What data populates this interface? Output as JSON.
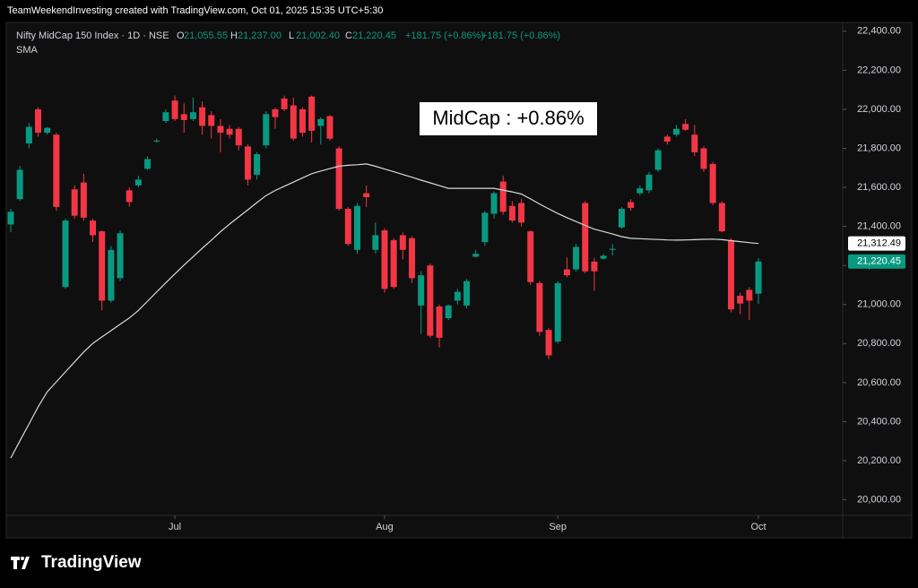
{
  "header": {
    "credit": "TeamWeekendInvesting created with TradingView.com, Oct 01, 2025 15:35 UTC+5:30",
    "symbol": "Nifty MidCap 150 Index · 1D · NSE",
    "ohlc": [
      {
        "key": "O",
        "value": "21,055.55"
      },
      {
        "key": "H",
        "value": "21,237.00"
      },
      {
        "key": "L",
        "value": "21,002.40"
      },
      {
        "key": "C",
        "value": "21,220.45"
      }
    ],
    "change": "+181.75 (+0.86%)",
    "change2": "+181.75 (+0.86%)",
    "indicator": "SMA"
  },
  "annotation": "MidCap : +0.86%",
  "logo": "TradingView",
  "chart_data": {
    "type": "candlestick",
    "categories": [
      null,
      null,
      null,
      null,
      null,
      null,
      null,
      null,
      null,
      null,
      null,
      null,
      null,
      null,
      null,
      null,
      null,
      null,
      "Jul",
      null,
      null,
      null,
      null,
      null,
      null,
      null,
      null,
      null,
      null,
      null,
      null,
      null,
      null,
      null,
      null,
      null,
      null,
      null,
      null,
      null,
      null,
      "Aug",
      null,
      null,
      null,
      null,
      null,
      null,
      null,
      null,
      null,
      null,
      null,
      null,
      null,
      null,
      null,
      null,
      null,
      null,
      "Sep",
      null,
      null,
      null,
      null,
      null,
      null,
      null,
      null,
      null,
      null,
      null,
      null,
      null,
      null,
      null,
      null,
      null,
      null,
      null,
      null,
      null,
      "Oct"
    ],
    "open": [
      21410,
      21540,
      21825,
      22000,
      21880,
      21870,
      21090,
      21590,
      21625,
      21430,
      21375,
      21020,
      21135,
      21585,
      21610,
      21695,
      21835,
      21940,
      22045,
      21975,
      21950,
      22010,
      21970,
      21915,
      21900,
      21900,
      21810,
      21665,
      21815,
      22000,
      22055,
      22020,
      22000,
      22065,
      21915,
      21965,
      21800,
      21490,
      21280,
      21570,
      21280,
      21380,
      21330,
      21355,
      21340,
      20995,
      21200,
      20990,
      20930,
      21020,
      20995,
      21245,
      21320,
      21465,
      21630,
      21505,
      21520,
      21375,
      21110,
      20870,
      20810,
      21180,
      21180,
      21520,
      21220,
      21235,
      21280,
      21395,
      21525,
      21570,
      21585,
      21690,
      21860,
      21870,
      21925,
      21870,
      21800,
      21720,
      21520,
      21330,
      21045,
      21075,
      21055.55
    ],
    "high": [
      21490,
      21710,
      21930,
      22010,
      21910,
      21880,
      21440,
      21610,
      21670,
      21440,
      21380,
      21300,
      21380,
      21600,
      21660,
      21760,
      21850,
      22000,
      22070,
      22030,
      22060,
      22040,
      21990,
      21950,
      21920,
      21910,
      21820,
      21780,
      21990,
      22010,
      22070,
      22060,
      22010,
      22070,
      21960,
      21970,
      21810,
      21500,
      21520,
      21610,
      21420,
      21390,
      21340,
      21370,
      21350,
      21170,
      21210,
      21000,
      21000,
      21080,
      21130,
      21280,
      21480,
      21580,
      21660,
      21530,
      21540,
      21380,
      21120,
      20880,
      21120,
      21240,
      21310,
      21530,
      21240,
      21260,
      21310,
      21500,
      21540,
      21610,
      21680,
      21800,
      21870,
      21920,
      21950,
      21920,
      21810,
      21730,
      21530,
      21340,
      21060,
      21090,
      21237
    ],
    "low": [
      21370,
      21530,
      21800,
      21860,
      21870,
      21480,
      21080,
      21440,
      21430,
      21320,
      20970,
      21010,
      21120,
      21500,
      21600,
      21690,
      21830,
      21930,
      21940,
      21880,
      21940,
      21870,
      21850,
      21780,
      21850,
      21790,
      21610,
      21640,
      21800,
      21900,
      21990,
      21840,
      21860,
      21830,
      21820,
      21840,
      21480,
      21300,
      21260,
      21500,
      21260,
      21060,
      21080,
      21230,
      21110,
      20850,
      20830,
      20780,
      20920,
      21000,
      20980,
      21240,
      21300,
      21440,
      21460,
      21420,
      21400,
      21100,
      20840,
      20720,
      20800,
      21140,
      21170,
      21160,
      21070,
      21230,
      21250,
      21390,
      21480,
      21560,
      21570,
      21680,
      21820,
      21860,
      21890,
      21760,
      21680,
      21510,
      21370,
      20960,
      20950,
      20920,
      21002.4
    ],
    "close": [
      21475,
      21690,
      21910,
      21880,
      21905,
      21500,
      21430,
      21455,
      21445,
      21355,
      21020,
      21280,
      21365,
      21525,
      21640,
      21745,
      21840,
      21985,
      21950,
      21945,
      21985,
      21915,
      21915,
      21880,
      21870,
      21815,
      21640,
      21770,
      21975,
      21960,
      22000,
      21850,
      21880,
      21890,
      21950,
      21850,
      21490,
      21310,
      21505,
      21550,
      21355,
      21080,
      21090,
      21280,
      21135,
      21150,
      20840,
      20830,
      20995,
      21065,
      21120,
      21260,
      21470,
      21570,
      21475,
      21430,
      21420,
      21115,
      20860,
      20740,
      21110,
      21150,
      21295,
      21170,
      21170,
      21250,
      21285,
      21490,
      21495,
      21595,
      21665,
      21790,
      21835,
      21900,
      21895,
      21780,
      21695,
      21520,
      21375,
      20975,
      21005,
      21020,
      21220.45
    ],
    "up_color": "#089981",
    "down_color": "#f23645",
    "sma": {
      "name": "SMA",
      "color": "#d9d9d9",
      "values": [
        20214,
        20302,
        20388,
        20476,
        20553,
        20604,
        20655,
        20706,
        20757,
        20801,
        20834,
        20866,
        20899,
        20931,
        20970,
        21017,
        21064,
        21111,
        21157,
        21202,
        21245,
        21288,
        21330,
        21373,
        21412,
        21449,
        21485,
        21522,
        21558,
        21584,
        21606,
        21627,
        21649,
        21670,
        21684,
        21696,
        21708,
        21713,
        21716,
        21720,
        21708,
        21694,
        21680,
        21666,
        21652,
        21637,
        21623,
        21609,
        21595,
        21595,
        21595,
        21595,
        21595,
        21595,
        21586,
        21577,
        21566,
        21541,
        21515,
        21490,
        21466,
        21445,
        21425,
        21405,
        21386,
        21374,
        21361,
        21348,
        21339,
        21337,
        21335,
        21333,
        21331,
        21330,
        21331,
        21332,
        21334,
        21335,
        21332,
        21327,
        21322,
        21317,
        21312.49
      ]
    },
    "price_labels": [
      {
        "value": 21312.49,
        "label": "21,312.49",
        "color": "#ffffff"
      },
      {
        "value": 21220.45,
        "label": "21,220.45",
        "color": "#089981"
      }
    ],
    "ylim": [
      19920,
      22445
    ],
    "yticks": [
      {
        "value": 20000,
        "label": "20,000.00"
      },
      {
        "value": 20200,
        "label": "20,200.00"
      },
      {
        "value": 20400,
        "label": "20,400.00"
      },
      {
        "value": 20600,
        "label": "20,600.00"
      },
      {
        "value": 20800,
        "label": "20,800.00"
      },
      {
        "value": 21000,
        "label": "21,000.00"
      },
      {
        "value": 21200,
        "label": "21,200.00"
      },
      {
        "value": 21400,
        "label": "21,400.00"
      },
      {
        "value": 21600,
        "label": "21,600.00"
      },
      {
        "value": 21800,
        "label": "21,800.00"
      },
      {
        "value": 22000,
        "label": "22,000.00"
      },
      {
        "value": 22200,
        "label": "22,200.00"
      },
      {
        "value": 22400,
        "label": "22,400.00"
      }
    ],
    "grid": false
  }
}
